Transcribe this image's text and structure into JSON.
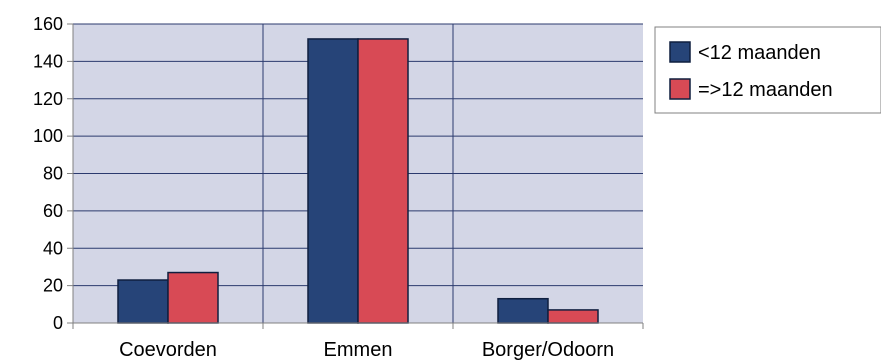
{
  "chart_data": {
    "type": "bar",
    "categories": [
      "Coevorden",
      "Emmen",
      "Borger/Odoorn"
    ],
    "series": [
      {
        "name": "<12 maanden",
        "values": [
          23,
          152,
          13
        ]
      },
      {
        "name": "=>12 maanden",
        "values": [
          27,
          152,
          7
        ]
      }
    ],
    "ylim": [
      0,
      160
    ],
    "yticks": [
      0,
      20,
      40,
      60,
      80,
      100,
      120,
      140,
      160
    ],
    "grid": true,
    "legend": "right",
    "colors": {
      "plot_background": "#d3d6e6",
      "gridline": "#2b3a6e",
      "series": [
        "#264478",
        "#d84a55"
      ],
      "bar_outline": "#0f1f3f"
    }
  }
}
